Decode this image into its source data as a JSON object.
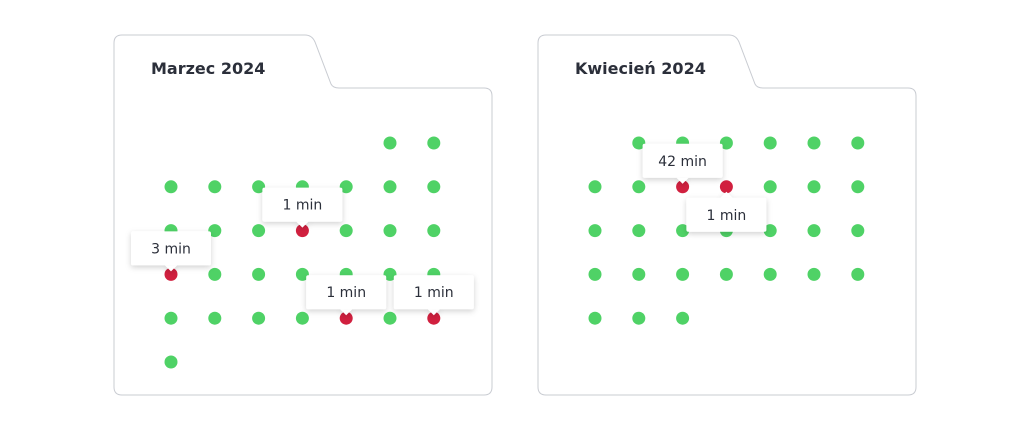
{
  "months": [
    {
      "title": "Marzec 2024",
      "days": [
        null,
        null,
        null,
        null,
        null,
        null,
        null,
        null,
        null,
        null,
        null,
        null,
        "1 min",
        null,
        null,
        null,
        "3 min",
        null,
        null,
        null,
        null,
        null,
        null,
        null,
        null,
        null,
        null,
        "1 min",
        null,
        "1 min",
        null
      ]
    },
    {
      "title": "Kwiecień 2024",
      "days": [
        null,
        null,
        null,
        null,
        null,
        null,
        null,
        null,
        "42 min",
        "1 min",
        null,
        null,
        null,
        null,
        null,
        null,
        null,
        null,
        null,
        null,
        null,
        null,
        null,
        null,
        null,
        null,
        null,
        null,
        null,
        null
      ]
    }
  ]
}
